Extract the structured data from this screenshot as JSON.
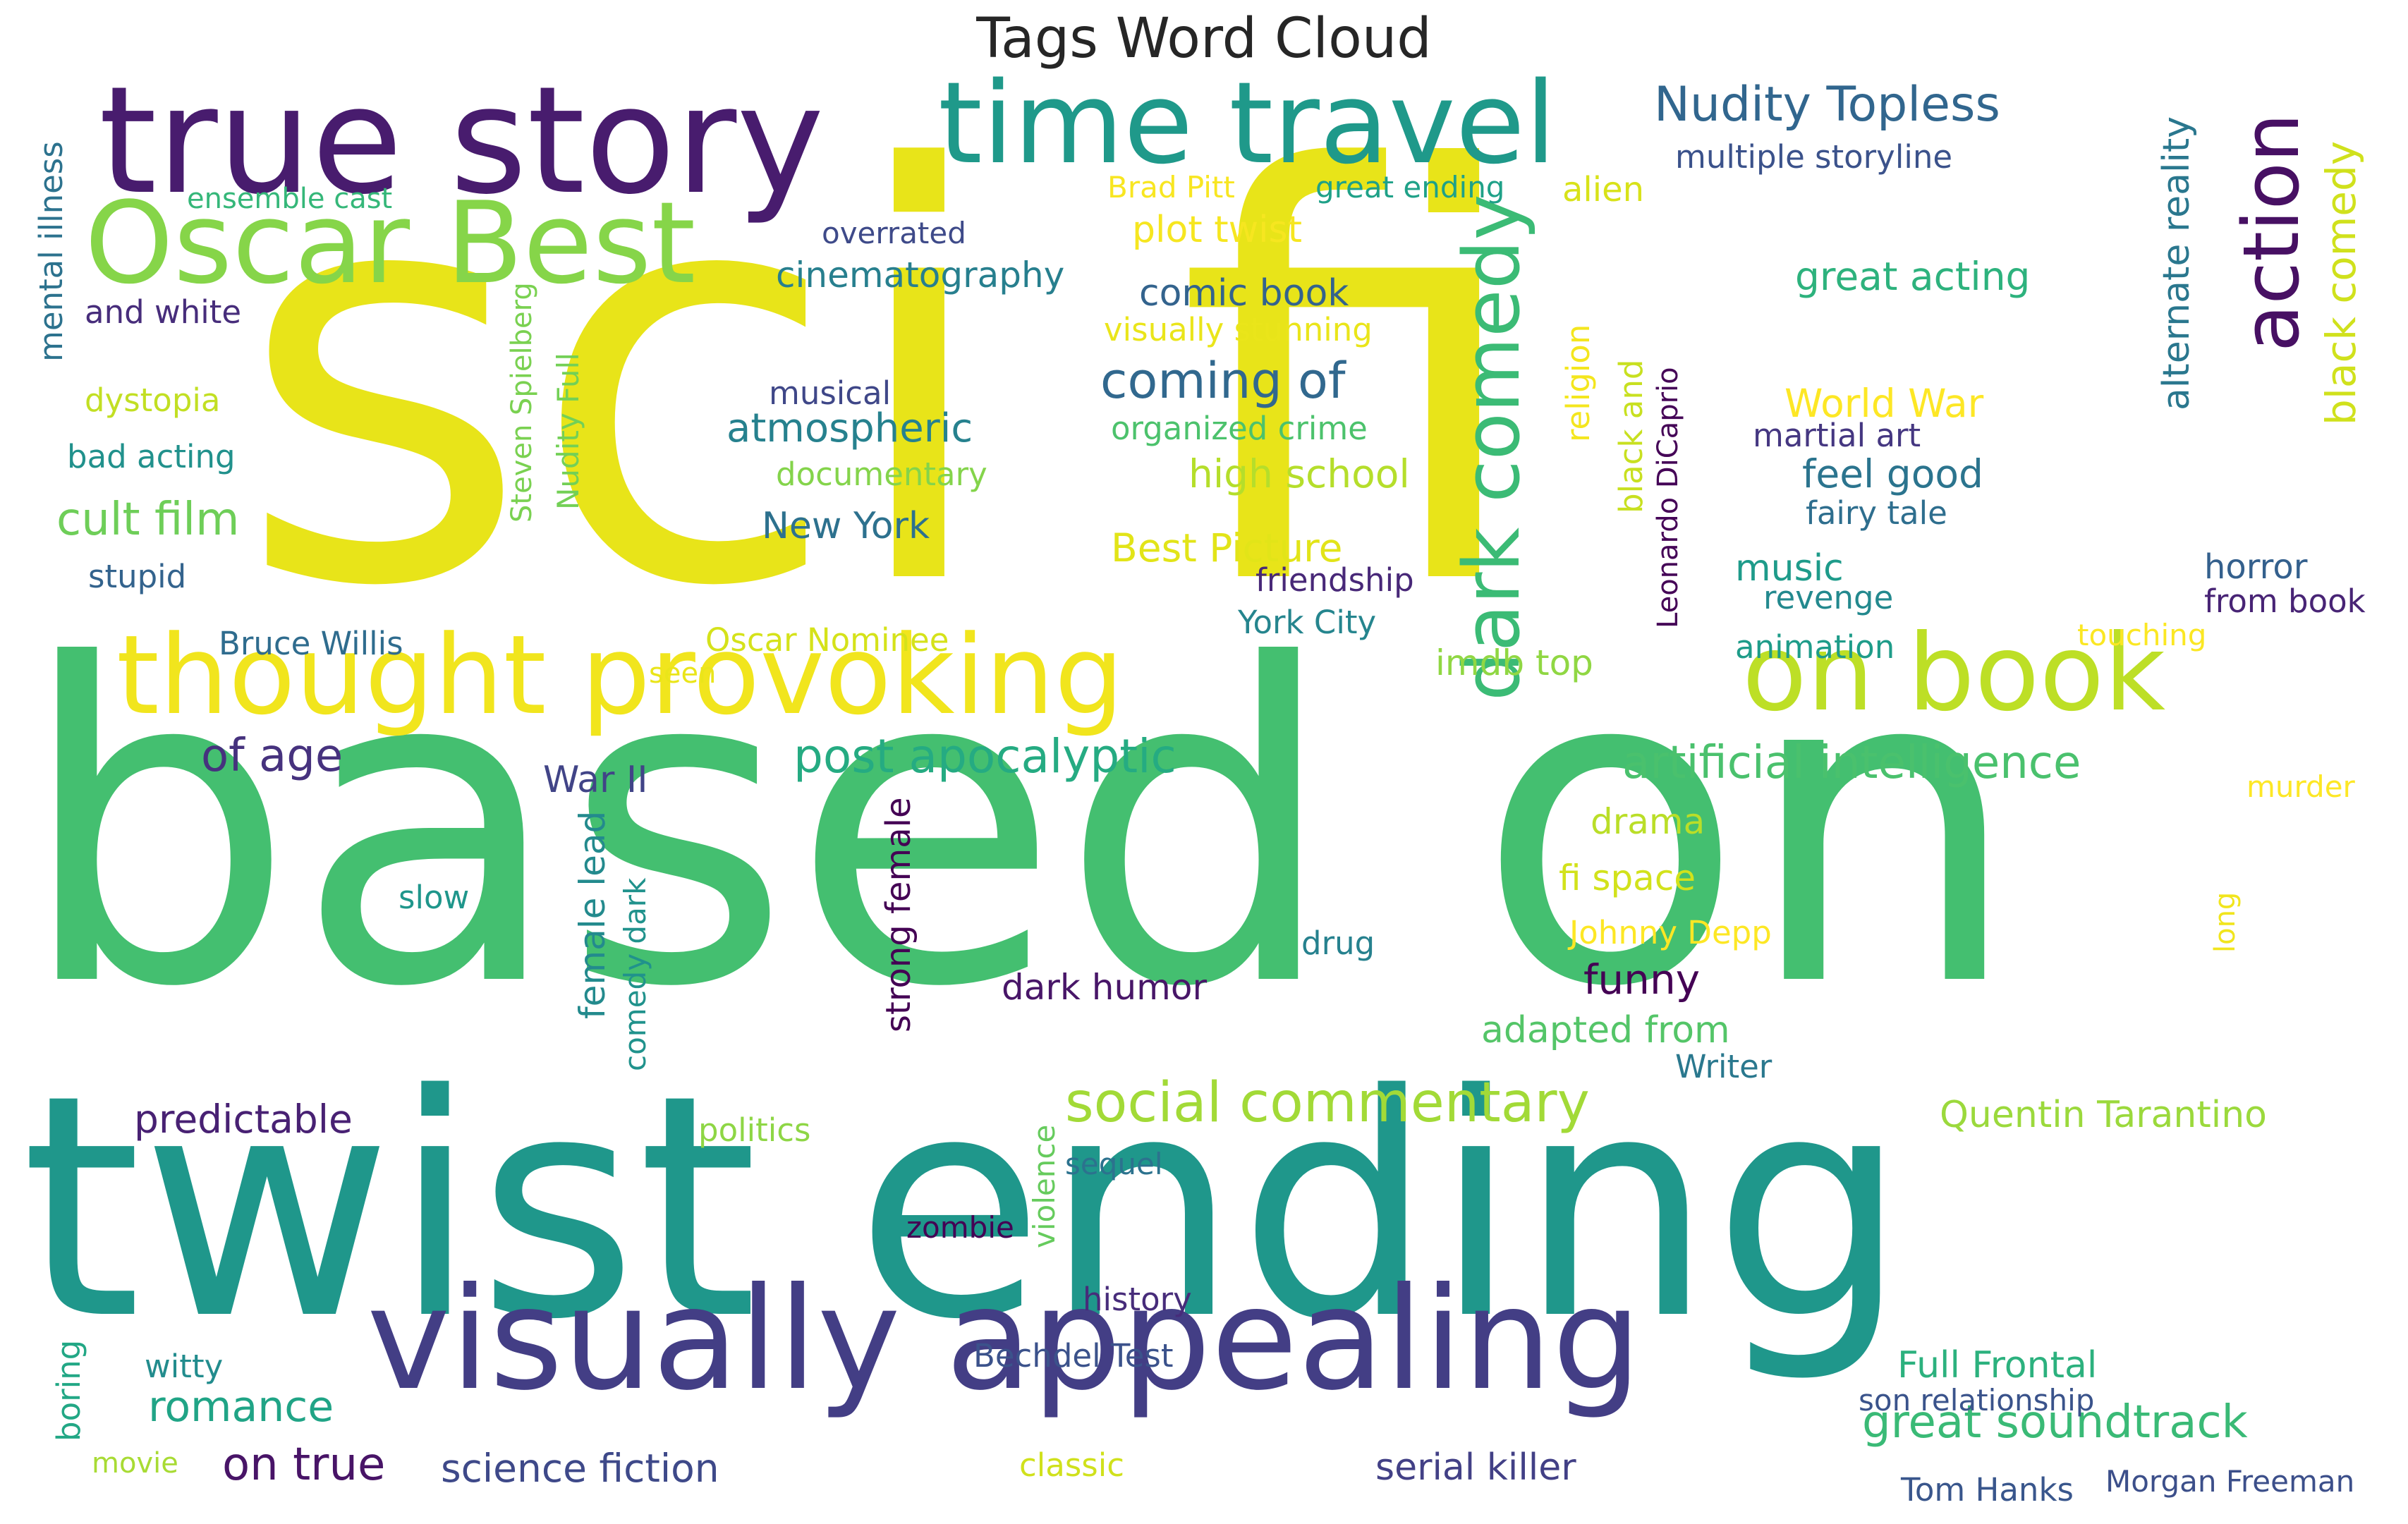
{
  "chart_data": {
    "type": "wordcloud",
    "title": "Tags Word Cloud",
    "words": [
      {
        "text": "sci fi",
        "color": "#e8e419"
      },
      {
        "text": "based on",
        "color": "#44bf70"
      },
      {
        "text": "twist ending",
        "color": "#1f978b"
      },
      {
        "text": "true story",
        "color": "#481c6e"
      },
      {
        "text": "visually appealing",
        "color": "#433e85"
      },
      {
        "text": "time travel",
        "color": "#1f998a"
      },
      {
        "text": "thought provoking",
        "color": "#f1e51d"
      },
      {
        "text": "Oscar Best",
        "color": "#86d549"
      },
      {
        "text": "on book",
        "color": "#bddf26"
      },
      {
        "text": "dark comedy",
        "color": "#3bbb75"
      },
      {
        "text": "action",
        "color": "#471063"
      },
      {
        "text": "Nudity Topless",
        "color": "#31668e"
      },
      {
        "text": "social commentary",
        "color": "#a2da37"
      },
      {
        "text": "great soundtrack",
        "color": "#3aba76"
      },
      {
        "text": "post apocalyptic",
        "color": "#25ab82"
      },
      {
        "text": "artificial intelligence",
        "color": "#4ac16d"
      },
      {
        "text": "coming of",
        "color": "#31688e"
      },
      {
        "text": "atmospheric",
        "color": "#26818e"
      },
      {
        "text": "cult film",
        "color": "#6ece58"
      },
      {
        "text": "of age",
        "color": "#46327e"
      },
      {
        "text": "black comedy",
        "color": "#d0e11c"
      },
      {
        "text": "alternate reality",
        "color": "#2a778e"
      },
      {
        "text": "plot twist",
        "color": "#f6e620"
      },
      {
        "text": "great acting",
        "color": "#2db27d"
      },
      {
        "text": "cinematography",
        "color": "#277f8e"
      },
      {
        "text": "comic book",
        "color": "#33638d"
      },
      {
        "text": "high school",
        "color": "#b5de2b"
      },
      {
        "text": "Best Picture",
        "color": "#e2e418"
      },
      {
        "text": "World War",
        "color": "#fde725"
      },
      {
        "text": "feel good",
        "color": "#2b748e"
      },
      {
        "text": "predictable",
        "color": "#482173"
      },
      {
        "text": "funny",
        "color": "#440154"
      },
      {
        "text": "adapted from",
        "color": "#54c568"
      },
      {
        "text": "Quentin Tarantino",
        "color": "#9bd93c"
      },
      {
        "text": "romance",
        "color": "#20a486"
      },
      {
        "text": "science fiction",
        "color": "#3e4989"
      },
      {
        "text": "serial killer",
        "color": "#424086"
      },
      {
        "text": "on true",
        "color": "#481467"
      },
      {
        "text": "Full Frontal",
        "color": "#2cb17e"
      },
      {
        "text": "multiple storyline",
        "color": "#3b528b"
      },
      {
        "text": "mental illness",
        "color": "#2c728e"
      },
      {
        "text": "ensemble cast",
        "color": "#35b779"
      },
      {
        "text": "overrated",
        "color": "#3e4a89"
      },
      {
        "text": "Brad Pitt",
        "color": "#f8e621"
      },
      {
        "text": "great ending",
        "color": "#1fa188"
      },
      {
        "text": "alien",
        "color": "#d8e219"
      },
      {
        "text": "and white",
        "color": "#472d7b"
      },
      {
        "text": "visually stunning",
        "color": "#eae51a"
      },
      {
        "text": "Steven Spielberg",
        "color": "#7ad151"
      },
      {
        "text": "dystopia",
        "color": "#c2df23"
      },
      {
        "text": "musical",
        "color": "#3f4788"
      },
      {
        "text": "bad acting",
        "color": "#21918c"
      },
      {
        "text": "organized crime",
        "color": "#4cc26c"
      },
      {
        "text": "documentary",
        "color": "#84d44b"
      },
      {
        "text": "martial art",
        "color": "#453781"
      },
      {
        "text": "religion",
        "color": "#f4e61e"
      },
      {
        "text": "black and",
        "color": "#c8e020"
      },
      {
        "text": "Leonardo DiCaprio",
        "color": "#450457"
      },
      {
        "text": "New York",
        "color": "#2d718e"
      },
      {
        "text": "Nudity Full",
        "color": "#73d056"
      },
      {
        "text": "fairy tale",
        "color": "#2e6e8e"
      },
      {
        "text": "music",
        "color": "#1e9b8a"
      },
      {
        "text": "horror",
        "color": "#34608d"
      },
      {
        "text": "stupid",
        "color": "#33638d"
      },
      {
        "text": "friendship",
        "color": "#482878"
      },
      {
        "text": "revenge",
        "color": "#23898e"
      },
      {
        "text": "from book",
        "color": "#482475"
      },
      {
        "text": "Bruce Willis",
        "color": "#2f6c8e"
      },
      {
        "text": "York City",
        "color": "#25858e"
      },
      {
        "text": "Oscar Nominee",
        "color": "#d5e21a"
      },
      {
        "text": "touching",
        "color": "#fbe723"
      },
      {
        "text": "seen",
        "color": "#eae51a"
      },
      {
        "text": "imdb top",
        "color": "#90d743"
      },
      {
        "text": "animation",
        "color": "#1e9c89"
      },
      {
        "text": "War II",
        "color": "#414487"
      },
      {
        "text": "murder",
        "color": "#fde725"
      },
      {
        "text": "drama",
        "color": "#bade28"
      },
      {
        "text": "female lead",
        "color": "#238a8d"
      },
      {
        "text": "strong female",
        "color": "#440154"
      },
      {
        "text": "fi space",
        "color": "#d2e21b"
      },
      {
        "text": "slow",
        "color": "#1f968b"
      },
      {
        "text": "comedy dark",
        "color": "#20928c"
      },
      {
        "text": "Johnny Depp",
        "color": "#fde725"
      },
      {
        "text": "drug",
        "color": "#26818e"
      },
      {
        "text": "long",
        "color": "#f1e51d"
      },
      {
        "text": "dark humor",
        "color": "#481668"
      },
      {
        "text": "Writer",
        "color": "#2a788e"
      },
      {
        "text": "politics",
        "color": "#8ed645"
      },
      {
        "text": "violence",
        "color": "#66cb5d"
      },
      {
        "text": "sequel",
        "color": "#2c728e"
      },
      {
        "text": "zombie",
        "color": "#440154"
      },
      {
        "text": "history",
        "color": "#472c7a"
      },
      {
        "text": "Bechdel Test",
        "color": "#3b528b"
      },
      {
        "text": "witty",
        "color": "#228c8d"
      },
      {
        "text": "boring",
        "color": "#22a785"
      },
      {
        "text": "son relationship",
        "color": "#3a538b"
      },
      {
        "text": "movie",
        "color": "#a8db34"
      },
      {
        "text": "classic",
        "color": "#d0e11c"
      },
      {
        "text": "Tom Hanks",
        "color": "#39568c"
      },
      {
        "text": "Morgan Freeman",
        "color": "#3c4f8a"
      }
    ]
  }
}
